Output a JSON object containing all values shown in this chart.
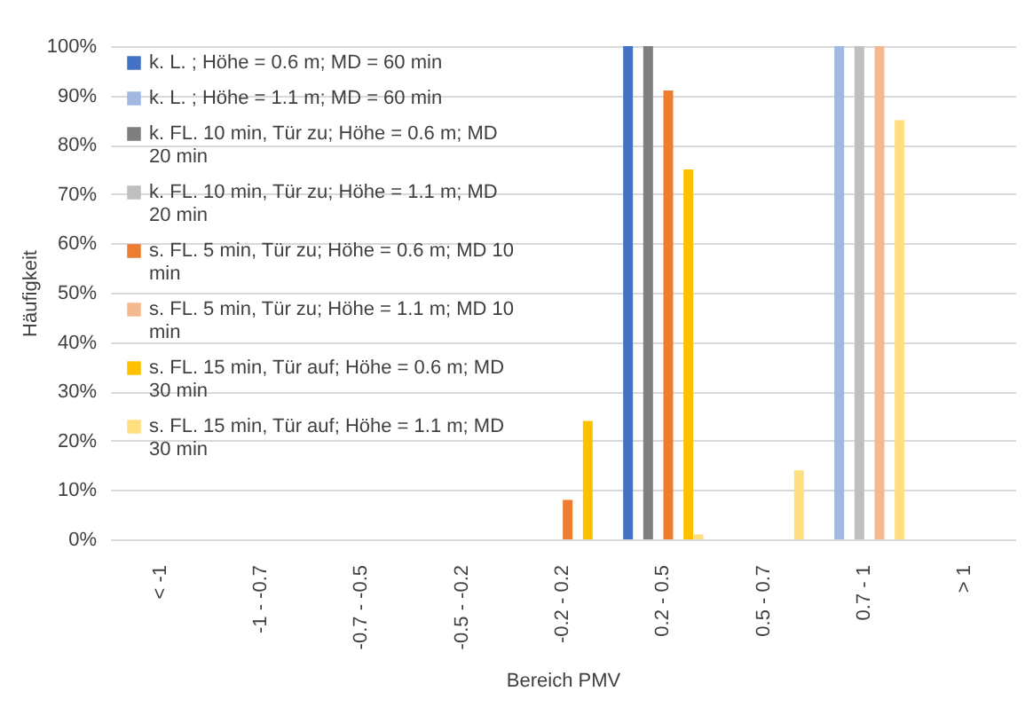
{
  "chart_data": {
    "type": "bar",
    "xlabel": "Bereich PMV",
    "ylabel": "Häufigkeit",
    "categories": [
      "< -1",
      "-1 - -0.7",
      "-0.7 - -0.5",
      "-0.5 - -0.2",
      "-0.2 - 0.2",
      "0.2 - 0.5",
      "0.5 - 0.7",
      "0.7 - 1",
      "> 1"
    ],
    "series": [
      {
        "name": "k. L. ; Höhe = 0.6 m; MD = 60 min",
        "color": "#4472c4",
        "values": [
          0,
          0,
          0,
          0,
          0,
          100,
          0,
          0,
          0
        ]
      },
      {
        "name": "k. L. ; Höhe = 1.1 m; MD = 60 min",
        "color": "#a1b8e1",
        "values": [
          0,
          0,
          0,
          0,
          0,
          0,
          0,
          100,
          0
        ]
      },
      {
        "name": "k. FL. 10 min, Tür zu;  Höhe = 0.6 m; MD 20 min",
        "color": "#7f7f7f",
        "values": [
          0,
          0,
          0,
          0,
          0,
          100,
          0,
          0,
          0
        ]
      },
      {
        "name": "k. FL. 10 min, Tür zu;  Höhe = 1.1 m; MD 20 min",
        "color": "#bfbfbf",
        "values": [
          0,
          0,
          0,
          0,
          0,
          0,
          0,
          100,
          0
        ]
      },
      {
        "name": "s. FL. 5 min, Tür zu;  Höhe = 0.6 m; MD 10 min",
        "color": "#ed7d31",
        "values": [
          0,
          0,
          0,
          0,
          8,
          91,
          0,
          0,
          0
        ]
      },
      {
        "name": "s. FL. 5 min, Tür zu;  Höhe = 1.1 m; MD 10 min",
        "color": "#f4b98f",
        "values": [
          0,
          0,
          0,
          0,
          0,
          0,
          0,
          100,
          0
        ]
      },
      {
        "name": "s. FL. 15 min, Tür auf;  Höhe = 0.6 m; MD 30 min",
        "color": "#ffc000",
        "values": [
          0,
          0,
          0,
          0,
          24,
          75,
          0,
          0,
          0
        ]
      },
      {
        "name": "s. FL. 15 min, Tür auf;  Höhe = 1.1 m; MD 30 min",
        "color": "#ffdf80",
        "values": [
          0,
          0,
          0,
          0,
          0,
          1,
          14,
          85,
          0
        ]
      }
    ],
    "ylim": [
      0,
      100
    ],
    "yticks": [
      {
        "value": 0,
        "label": "0%"
      },
      {
        "value": 10,
        "label": "10%"
      },
      {
        "value": 20,
        "label": "20%"
      },
      {
        "value": 30,
        "label": "30%"
      },
      {
        "value": 40,
        "label": "40%"
      },
      {
        "value": 50,
        "label": "50%"
      },
      {
        "value": 60,
        "label": "60%"
      },
      {
        "value": 70,
        "label": "70%"
      },
      {
        "value": 80,
        "label": "80%"
      },
      {
        "value": 90,
        "label": "90%"
      },
      {
        "value": 100,
        "label": "100%"
      }
    ],
    "grid": "y",
    "legend": "top left"
  }
}
